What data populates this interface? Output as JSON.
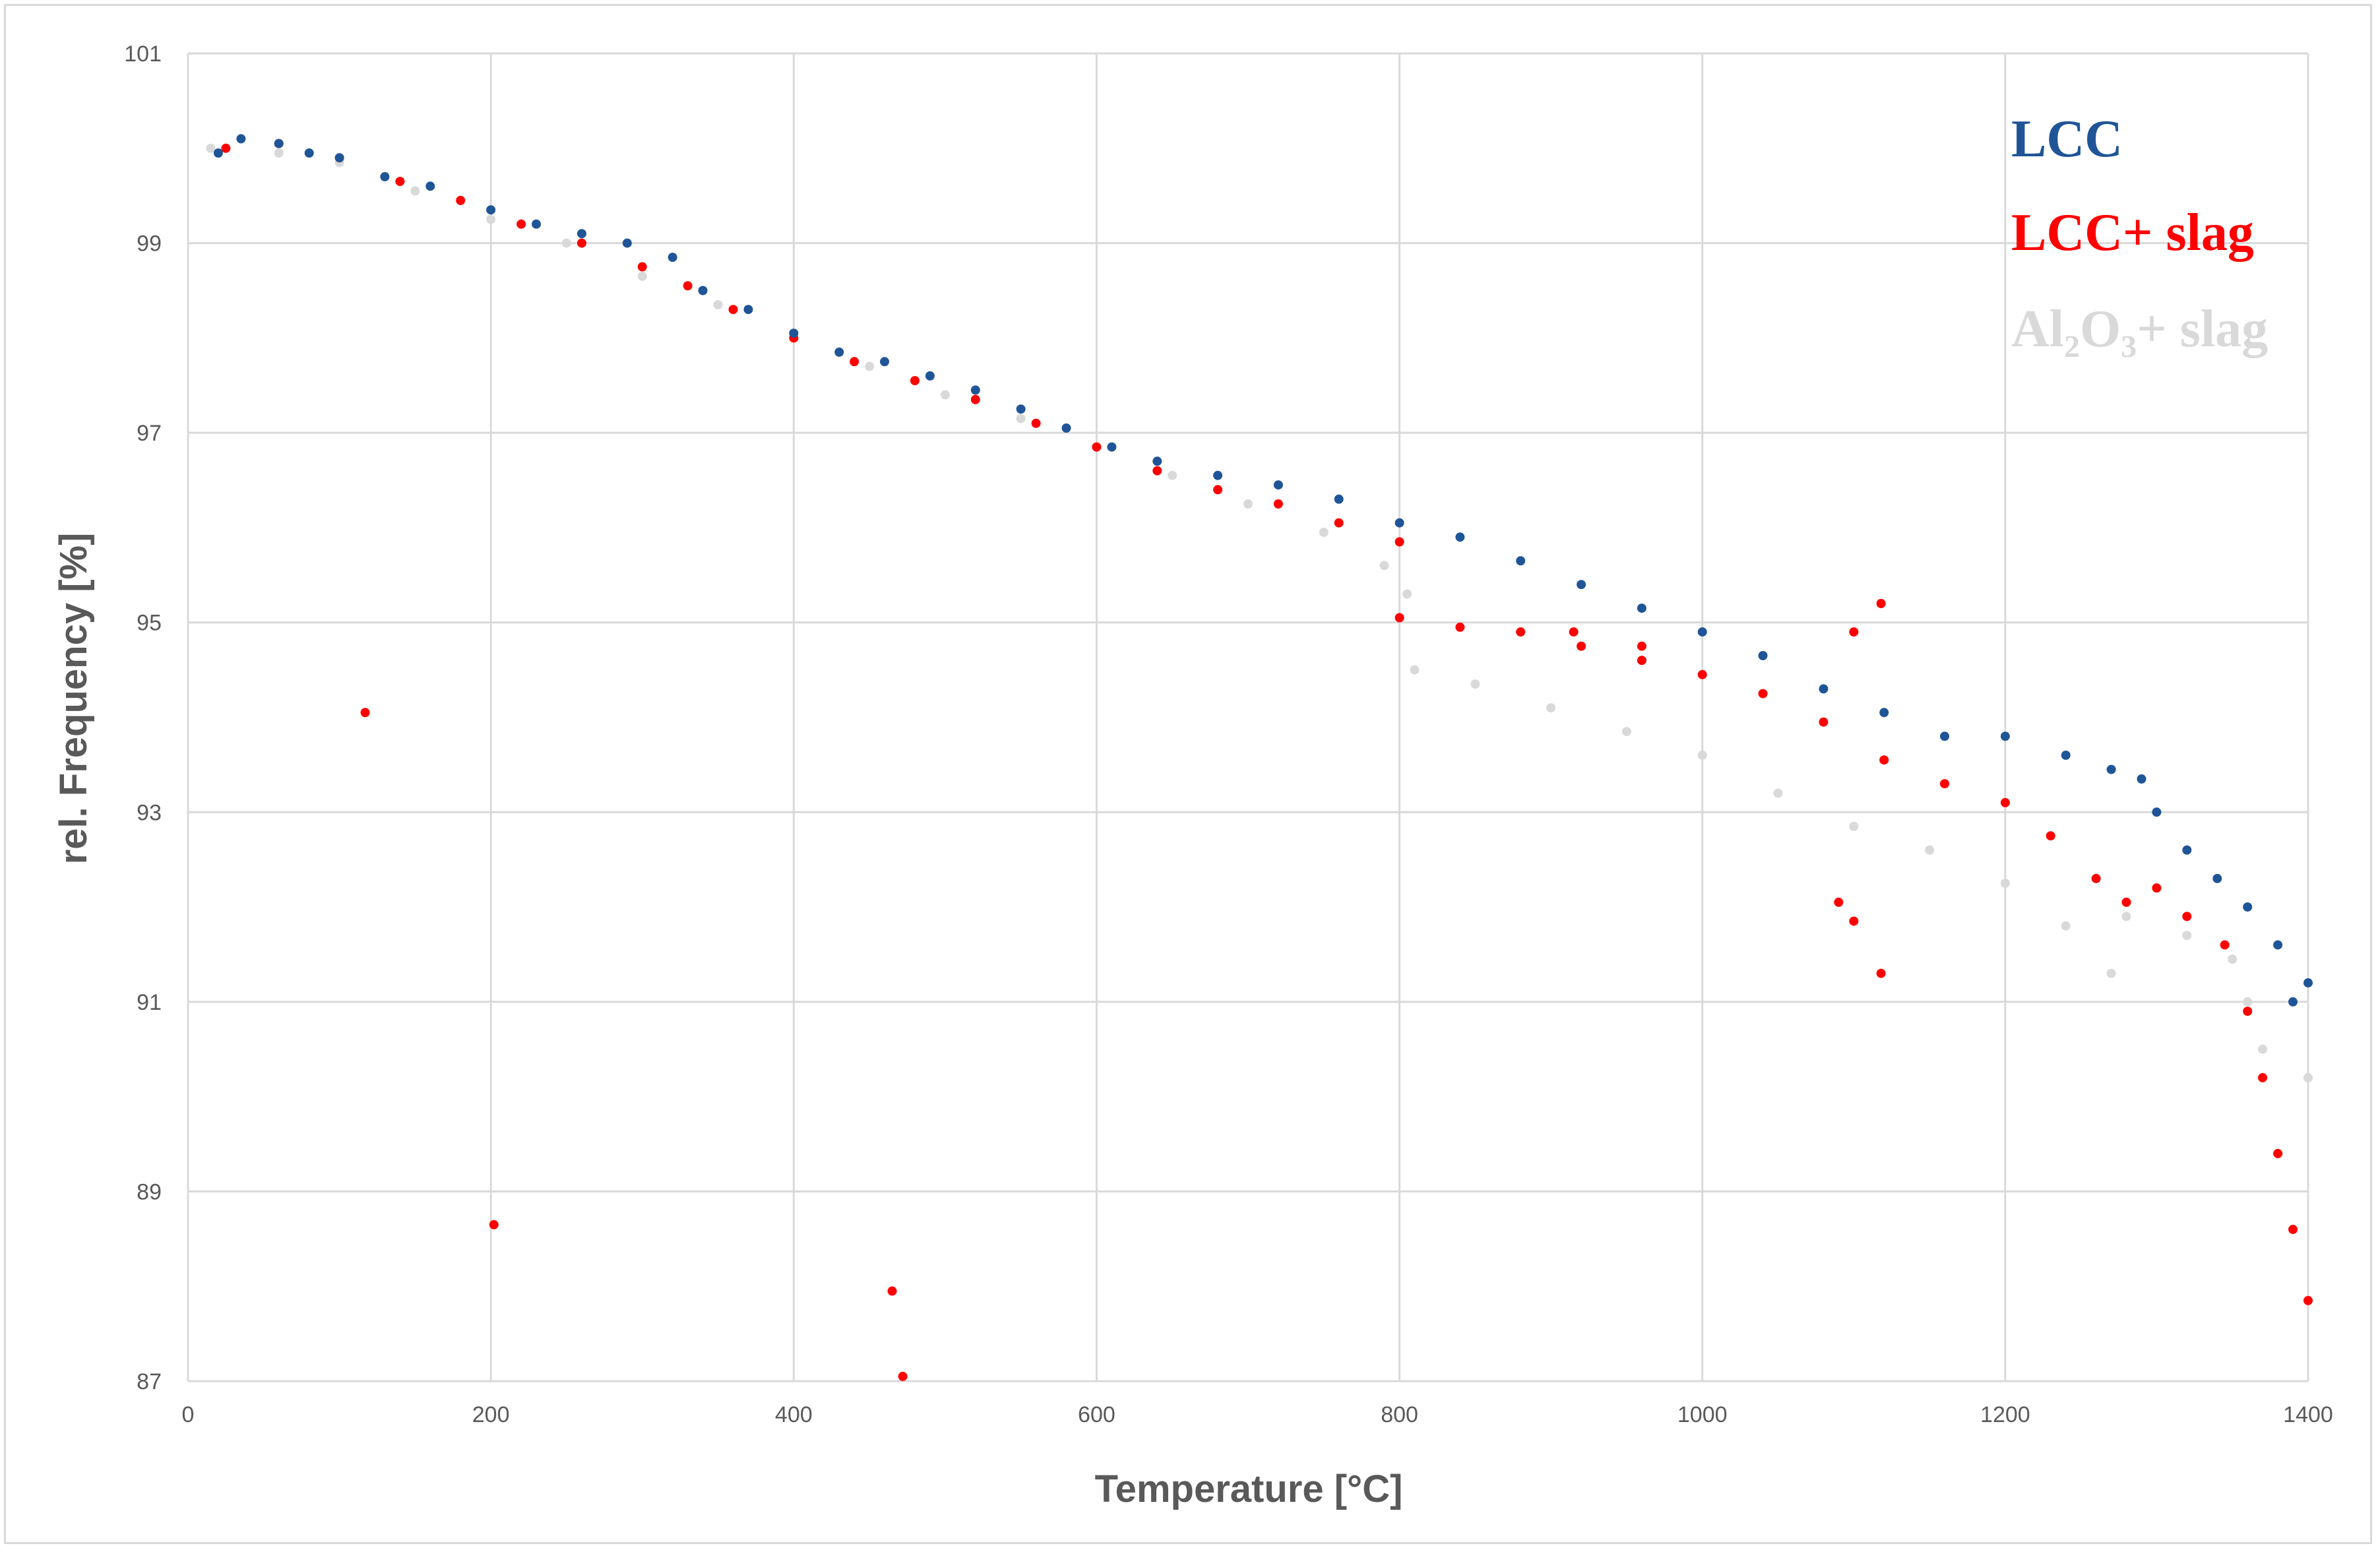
{
  "chart_data": {
    "type": "scatter",
    "title": "",
    "xlabel": "Temperature [°C]",
    "ylabel": "rel. Frequency [%]",
    "xlim": [
      0,
      1400
    ],
    "ylim": [
      87,
      101
    ],
    "x_ticks": [
      0,
      200,
      400,
      600,
      800,
      1000,
      1200,
      1400
    ],
    "y_ticks": [
      87,
      89,
      91,
      93,
      95,
      97,
      99,
      101
    ],
    "grid": true,
    "legend_position": "top-right",
    "series": [
      {
        "name": "LCC",
        "color": "#1f5597",
        "points": [
          [
            20,
            99.95
          ],
          [
            35,
            100.1
          ],
          [
            60,
            100.05
          ],
          [
            80,
            99.95
          ],
          [
            100,
            99.9
          ],
          [
            130,
            99.7
          ],
          [
            160,
            99.6
          ],
          [
            200,
            99.35
          ],
          [
            230,
            99.2
          ],
          [
            260,
            99.1
          ],
          [
            290,
            99.0
          ],
          [
            320,
            98.85
          ],
          [
            340,
            98.5
          ],
          [
            370,
            98.3
          ],
          [
            400,
            98.05
          ],
          [
            430,
            97.85
          ],
          [
            460,
            97.75
          ],
          [
            490,
            97.6
          ],
          [
            520,
            97.45
          ],
          [
            550,
            97.25
          ],
          [
            580,
            97.05
          ],
          [
            610,
            96.85
          ],
          [
            640,
            96.7
          ],
          [
            680,
            96.55
          ],
          [
            720,
            96.45
          ],
          [
            760,
            96.3
          ],
          [
            800,
            96.05
          ],
          [
            840,
            95.9
          ],
          [
            880,
            95.65
          ],
          [
            920,
            95.4
          ],
          [
            960,
            95.15
          ],
          [
            1000,
            94.9
          ],
          [
            1040,
            94.65
          ],
          [
            1080,
            94.3
          ],
          [
            1120,
            94.05
          ],
          [
            1160,
            93.8
          ],
          [
            1200,
            93.8
          ],
          [
            1240,
            93.6
          ],
          [
            1270,
            93.45
          ],
          [
            1290,
            93.35
          ],
          [
            1300,
            93.0
          ],
          [
            1320,
            92.6
          ],
          [
            1340,
            92.3
          ],
          [
            1360,
            92.0
          ],
          [
            1380,
            91.6
          ],
          [
            1390,
            91.0
          ],
          [
            1400,
            91.2
          ]
        ]
      },
      {
        "name": "LCC+ slag",
        "color": "#ff0000",
        "points": [
          [
            25,
            100.0
          ],
          [
            60,
            100.05
          ],
          [
            100,
            99.9
          ],
          [
            140,
            99.65
          ],
          [
            180,
            99.45
          ],
          [
            220,
            99.2
          ],
          [
            260,
            99.0
          ],
          [
            300,
            98.75
          ],
          [
            330,
            98.55
          ],
          [
            360,
            98.3
          ],
          [
            400,
            98.0
          ],
          [
            440,
            97.75
          ],
          [
            480,
            97.55
          ],
          [
            520,
            97.35
          ],
          [
            560,
            97.1
          ],
          [
            600,
            96.85
          ],
          [
            640,
            96.6
          ],
          [
            680,
            96.4
          ],
          [
            720,
            96.25
          ],
          [
            760,
            96.05
          ],
          [
            800,
            95.85
          ],
          [
            800,
            95.05
          ],
          [
            840,
            94.95
          ],
          [
            880,
            94.9
          ],
          [
            920,
            94.75
          ],
          [
            960,
            94.6
          ],
          [
            1000,
            94.45
          ],
          [
            1040,
            94.25
          ],
          [
            1080,
            93.95
          ],
          [
            1120,
            93.55
          ],
          [
            1160,
            93.3
          ],
          [
            1200,
            93.1
          ],
          [
            1230,
            92.75
          ],
          [
            1260,
            92.3
          ],
          [
            1280,
            92.05
          ],
          [
            1300,
            92.2
          ],
          [
            1320,
            91.9
          ],
          [
            1345,
            91.6
          ],
          [
            1360,
            90.9
          ],
          [
            1370,
            90.2
          ],
          [
            1380,
            89.4
          ],
          [
            1390,
            88.6
          ],
          [
            1400,
            87.85
          ],
          [
            117,
            94.05
          ],
          [
            202,
            88.65
          ],
          [
            465,
            87.95
          ],
          [
            472,
            87.05
          ],
          [
            1090,
            92.05
          ],
          [
            1100,
            91.85
          ],
          [
            1118,
            91.3
          ],
          [
            1100,
            94.9
          ],
          [
            1118,
            95.2
          ],
          [
            960,
            94.75
          ],
          [
            915,
            94.9
          ]
        ]
      },
      {
        "name": "Al₂O₃+ slag",
        "color": "#d9d9d9",
        "points": [
          [
            15,
            100.0
          ],
          [
            60,
            99.95
          ],
          [
            100,
            99.85
          ],
          [
            150,
            99.55
          ],
          [
            200,
            99.25
          ],
          [
            250,
            99.0
          ],
          [
            300,
            98.65
          ],
          [
            350,
            98.35
          ],
          [
            400,
            98.0
          ],
          [
            450,
            97.7
          ],
          [
            500,
            97.4
          ],
          [
            550,
            97.15
          ],
          [
            600,
            96.85
          ],
          [
            650,
            96.55
          ],
          [
            700,
            96.25
          ],
          [
            750,
            95.95
          ],
          [
            790,
            95.6
          ],
          [
            805,
            95.3
          ],
          [
            810,
            94.5
          ],
          [
            850,
            94.35
          ],
          [
            900,
            94.1
          ],
          [
            950,
            93.85
          ],
          [
            1000,
            93.6
          ],
          [
            1050,
            93.2
          ],
          [
            1100,
            92.85
          ],
          [
            1150,
            92.6
          ],
          [
            1200,
            92.25
          ],
          [
            1240,
            91.8
          ],
          [
            1270,
            91.3
          ],
          [
            1280,
            91.9
          ],
          [
            1320,
            91.7
          ],
          [
            1350,
            91.45
          ],
          [
            1360,
            91.0
          ],
          [
            1370,
            90.5
          ],
          [
            1400,
            90.2
          ]
        ]
      }
    ]
  }
}
